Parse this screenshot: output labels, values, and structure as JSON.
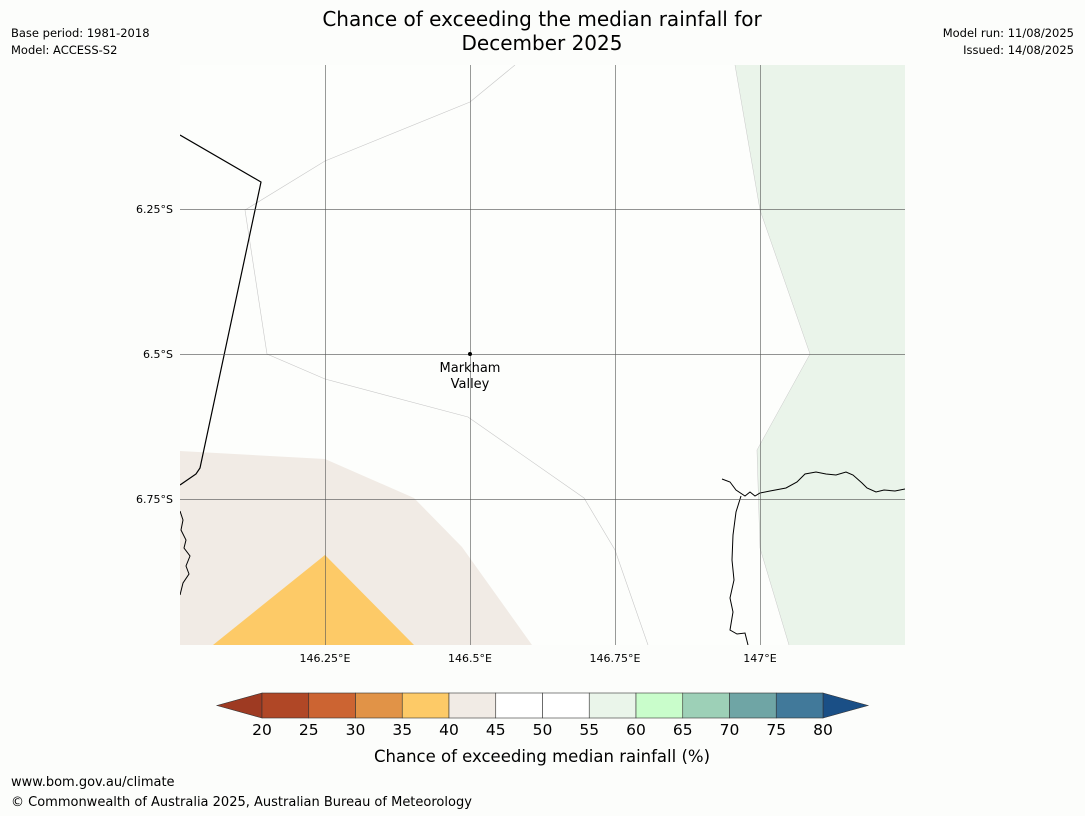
{
  "title_line1": "Chance of exceeding the median rainfall for",
  "title_line2": "December 2025",
  "meta_left": {
    "base_period": "Base period: 1981-2018",
    "model": "Model: ACCESS-S2"
  },
  "meta_right": {
    "model_run": "Model run: 11/08/2025",
    "issued": "Issued: 14/08/2025"
  },
  "map": {
    "lat_labels": [
      "6.25°S",
      "6.5°S",
      "6.75°S"
    ],
    "lon_labels": [
      "146.25°E",
      "146.5°E",
      "146.75°E",
      "147°E"
    ],
    "place_label_line1": "Markham",
    "place_label_line2": "Valley",
    "colors": {
      "c40_45": "#f1ebe5",
      "c35_40": "#fdca67",
      "c55_60": "#eaf4ea"
    }
  },
  "colorbar": {
    "label": "Chance of exceeding median rainfall (%)",
    "ticks": [
      "20",
      "25",
      "30",
      "35",
      "40",
      "45",
      "50",
      "55",
      "60",
      "65",
      "70",
      "75",
      "80"
    ],
    "colors": [
      "#b04726",
      "#cc6432",
      "#e19347",
      "#fdca67",
      "#f1ebe5",
      "#ffffff",
      "#ffffff",
      "#eaf5ea",
      "#c9fdcb",
      "#9dd0b7",
      "#6fa5a5",
      "#41799a"
    ],
    "under_color": "#9e3a22",
    "over_color": "#1a4f86"
  },
  "footer": {
    "url": "www.bom.gov.au/climate",
    "copyright": "© Commonwealth of Australia 2025, Australian Bureau of Meteorology"
  }
}
